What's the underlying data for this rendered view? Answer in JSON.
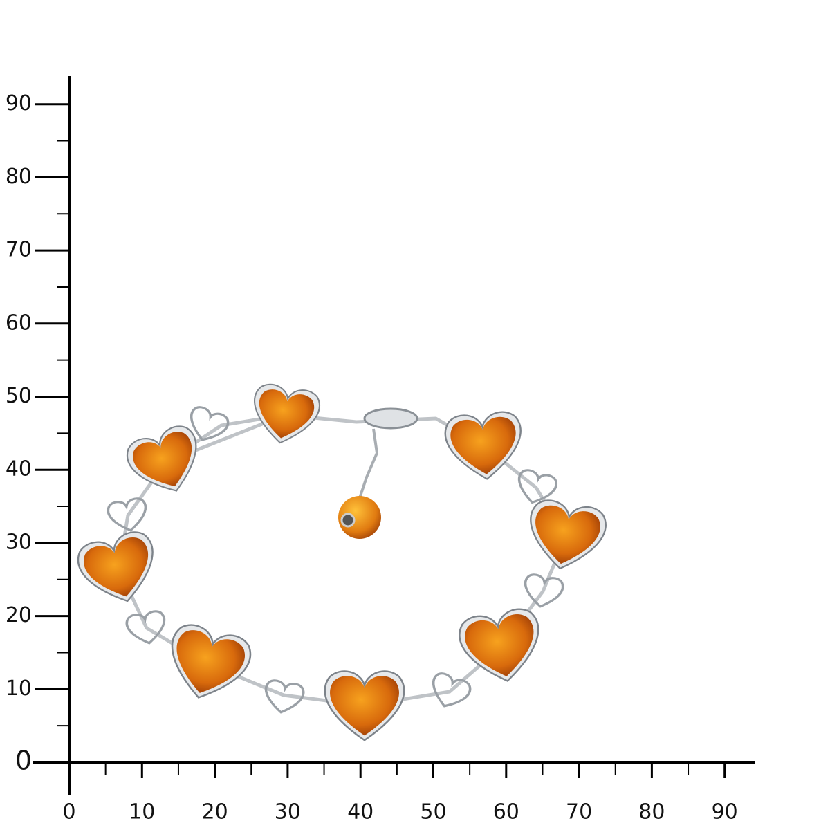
{
  "ruler": {
    "x_labels": [
      0,
      10,
      20,
      30,
      40,
      50,
      60,
      70,
      80,
      90
    ],
    "y_labels": [
      0,
      10,
      20,
      30,
      40,
      50,
      60,
      70,
      80,
      90
    ]
  }
}
